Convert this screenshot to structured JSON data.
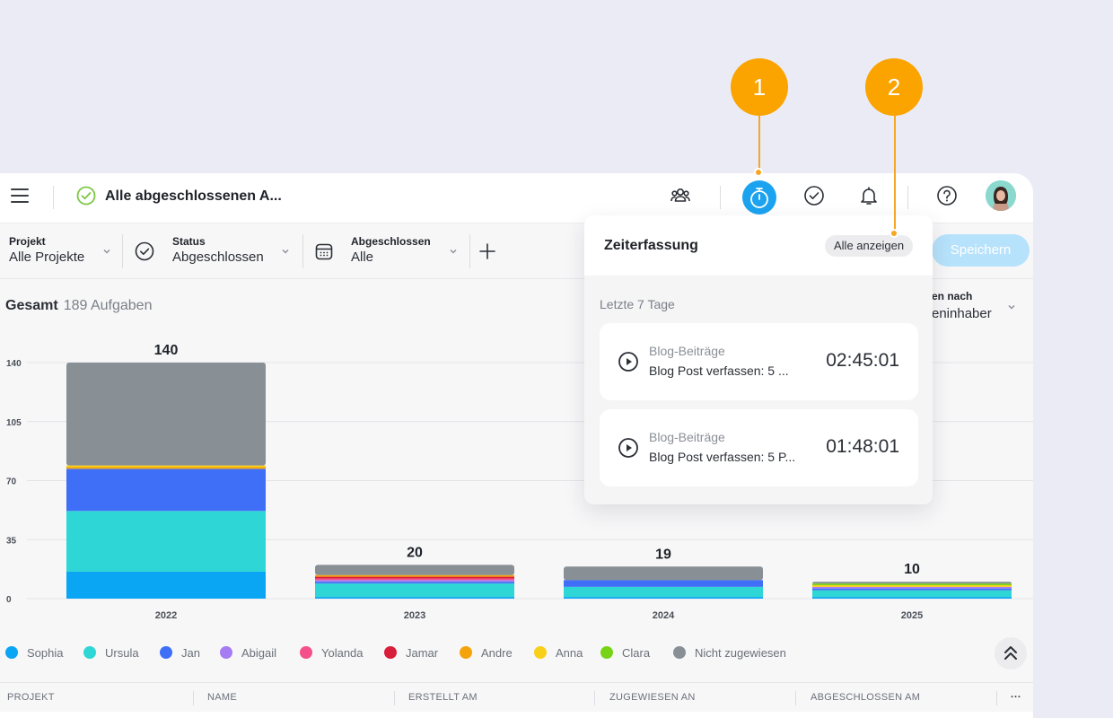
{
  "header": {
    "title": "Alle abgeschlossenen A..."
  },
  "filters": {
    "project": {
      "label": "Projekt",
      "value": "Alle Projekte"
    },
    "status": {
      "label": "Status",
      "value": "Abgeschlossen"
    },
    "completed": {
      "label": "Abgeschlossen",
      "value": "Alle"
    },
    "save_label": "Speichern"
  },
  "summary": {
    "label": "Gesamt",
    "count": "189 Aufgaben"
  },
  "group_by": {
    "label": "en nach",
    "value": "eninhaber"
  },
  "chart_data": {
    "type": "bar",
    "stacked": true,
    "categories": [
      "2022",
      "2023",
      "2024",
      "2025"
    ],
    "totals": [
      140,
      20,
      19,
      10
    ],
    "ylim": [
      0,
      140
    ],
    "yticks": [
      0,
      35,
      70,
      105,
      140
    ],
    "grid": true,
    "series": [
      {
        "name": "Sophia",
        "color": "#0aa5f3",
        "values": [
          16,
          1,
          1,
          1
        ]
      },
      {
        "name": "Ursula",
        "color": "#2fd6d6",
        "values": [
          36,
          8,
          6,
          4
        ]
      },
      {
        "name": "Jan",
        "color": "#3e6ff6",
        "values": [
          25,
          1,
          4,
          1
        ]
      },
      {
        "name": "Abigail",
        "color": "#a67cf2",
        "values": [
          0,
          1,
          0,
          1
        ]
      },
      {
        "name": "Yolanda",
        "color": "#f4508a",
        "values": [
          0,
          1,
          0,
          0
        ]
      },
      {
        "name": "Jamar",
        "color": "#d81e3a",
        "values": [
          0,
          1,
          0,
          0
        ]
      },
      {
        "name": "Andre",
        "color": "#f5a30a",
        "values": [
          1,
          1,
          0,
          0
        ]
      },
      {
        "name": "Anna",
        "color": "#f9d019",
        "values": [
          1,
          0,
          0,
          1
        ]
      },
      {
        "name": "Clara",
        "color": "#78d316",
        "values": [
          0,
          0,
          0,
          1
        ]
      },
      {
        "name": "Nicht zugewiesen",
        "color": "#888f95",
        "values": [
          61,
          6,
          8,
          1
        ]
      }
    ]
  },
  "table": {
    "columns": [
      "PROJEKT",
      "NAME",
      "ERSTELLT AM",
      "ZUGEWIESEN AN",
      "ABGESCHLOSSEN AM"
    ],
    "more_label": "···"
  },
  "popup": {
    "title": "Zeiterfassung",
    "show_all": "Alle anzeigen",
    "period": "Letzte 7 Tage",
    "entries": [
      {
        "project": "Blog-Beiträge",
        "task": "Blog Post verfassen: 5 ...",
        "time": "02:45:01"
      },
      {
        "project": "Blog-Beiträge",
        "task": "Blog Post verfassen: 5 P...",
        "time": "01:48:01"
      }
    ]
  },
  "markers": {
    "m1": "1",
    "m2": "2"
  }
}
